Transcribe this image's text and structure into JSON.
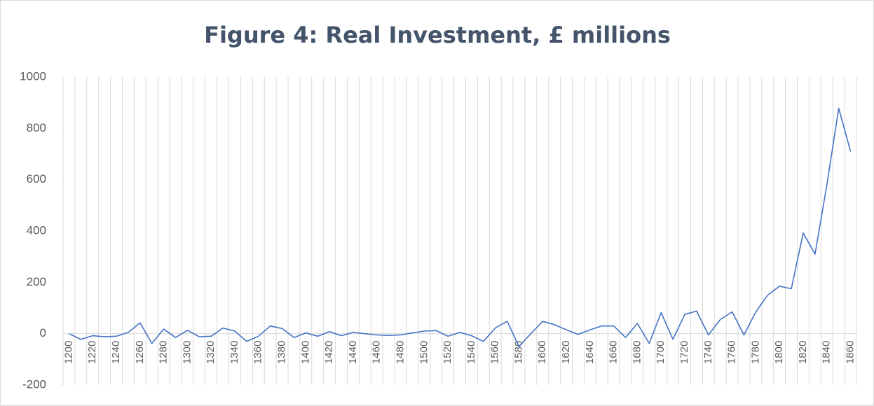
{
  "chart_data": {
    "type": "line",
    "title": "Figure 4: Real Investment, £ millions",
    "categories": [
      "1200",
      null,
      "1220",
      null,
      "1240",
      null,
      "1260",
      null,
      "1280",
      null,
      "1300",
      null,
      "1320",
      null,
      "1340",
      null,
      "1360",
      null,
      "1380",
      null,
      "1400",
      null,
      "1420",
      null,
      "1440",
      null,
      "1460",
      null,
      "1480",
      null,
      "1500",
      null,
      "1520",
      null,
      "1540",
      null,
      "1560",
      null,
      "1580",
      null,
      "1600",
      null,
      "1620",
      null,
      "1640",
      null,
      "1660",
      null,
      "1680",
      null,
      "1700",
      null,
      "1720",
      null,
      "1740",
      null,
      "1760",
      null,
      "1780",
      null,
      "1800",
      null,
      "1820",
      null,
      "1840",
      null,
      "1860"
    ],
    "values": [
      0,
      -22,
      -8,
      -12,
      -10,
      5,
      42,
      -38,
      18,
      -15,
      13,
      -12,
      -10,
      22,
      10,
      -30,
      -10,
      30,
      20,
      -15,
      3,
      -10,
      8,
      -8,
      5,
      0,
      -5,
      -7,
      -5,
      3,
      10,
      12,
      -10,
      5,
      -8,
      -30,
      22,
      48,
      -50,
      0,
      48,
      35,
      15,
      -3,
      15,
      30,
      30,
      -15,
      40,
      -38,
      82,
      -22,
      75,
      88,
      -5,
      55,
      85,
      -5,
      85,
      150,
      185,
      175,
      392,
      310,
      580,
      878,
      710
    ],
    "color": "#4472c4",
    "ylim": [
      -200,
      1000
    ],
    "yticks": [
      -200,
      0,
      200,
      400,
      600,
      800,
      1000
    ],
    "grid": true
  }
}
